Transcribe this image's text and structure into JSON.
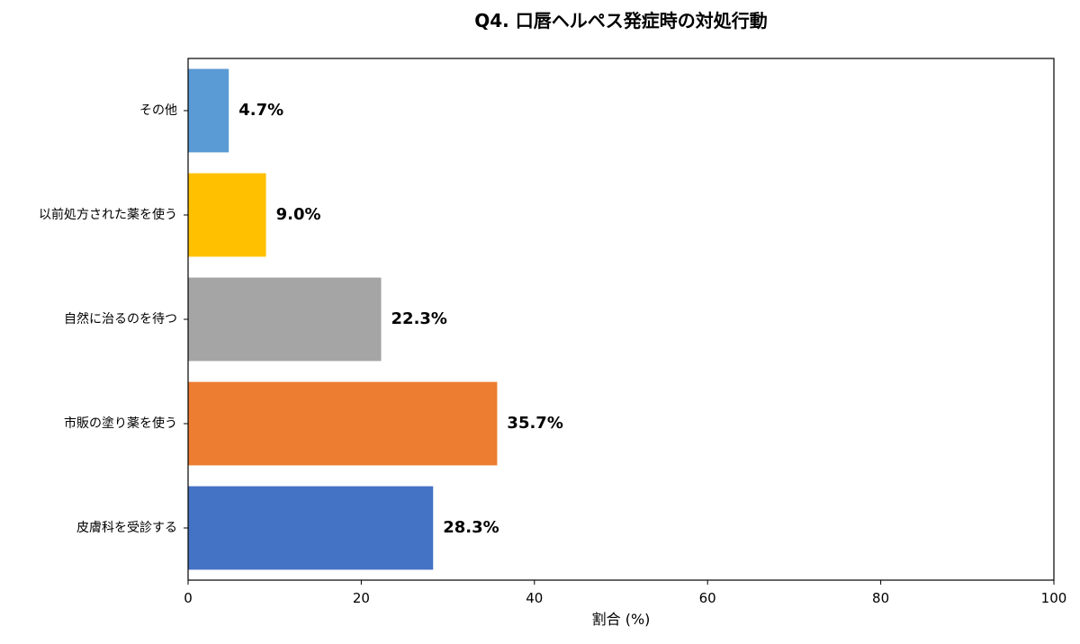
{
  "chart_data": {
    "type": "bar",
    "orientation": "horizontal",
    "title": "Q4. 口唇ヘルペス発症時の対処行動",
    "xlabel": "割合 (%)",
    "ylabel": "",
    "xlim": [
      0,
      100
    ],
    "xticks": [
      0,
      20,
      40,
      60,
      80,
      100
    ],
    "grid": false,
    "categories": [
      "その他",
      "以前処方された薬を使う",
      "自然に治るのを待つ",
      "市販の塗り薬を使う",
      "皮膚科を受診する"
    ],
    "values": [
      4.7,
      9.0,
      22.3,
      35.7,
      28.3
    ],
    "data_labels": [
      "4.7%",
      "9.0%",
      "22.3%",
      "35.7%",
      "28.3%"
    ],
    "colors": [
      "#5b9bd5",
      "#ffc000",
      "#a5a5a5",
      "#ed7d31",
      "#4472c4"
    ]
  }
}
